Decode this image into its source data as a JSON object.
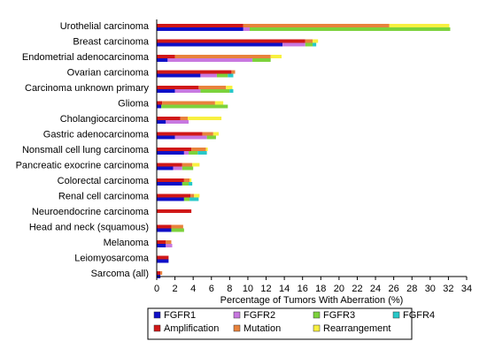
{
  "chart_data": {
    "type": "bar",
    "orientation": "horizontal",
    "stacked": true,
    "xlabel": "Percentage of Tumors With Aberration (%)",
    "xlim": [
      0,
      34
    ],
    "xticks": [
      0,
      2,
      4,
      6,
      8,
      10,
      12,
      14,
      16,
      18,
      20,
      22,
      24,
      26,
      28,
      30,
      32,
      34
    ],
    "grid": false,
    "legend_position": "bottom",
    "categories": [
      "Urothelial carcinoma",
      "Breast carcinoma",
      "Endometrial adenocarcinoma",
      "Ovarian carcinoma",
      "Carcinoma unknown primary",
      "Glioma",
      "Cholangiocarcinoma",
      "Gastric adenocarcinoma",
      "Nonsmall cell lung carcinoma",
      "Pancreatic exocrine carcinoma",
      "Colorectal carcinoma",
      "Renal cell carcinoma",
      "Neuroendocrine carcinoma",
      "Head and neck (squamous)",
      "Melanoma",
      "Leiomyosarcoma",
      "Sarcoma (all)"
    ],
    "gene_series": [
      {
        "name": "FGFR1",
        "color": "#1010c8",
        "values": [
          9.5,
          13.8,
          1.2,
          4.8,
          2.0,
          0.5,
          1.0,
          2.0,
          3.0,
          1.8,
          2.8,
          3.0,
          0.0,
          1.6,
          1.0,
          1.3,
          0.4
        ]
      },
      {
        "name": "FGFR2",
        "color": "#c878e0",
        "values": [
          0.7,
          2.5,
          9.3,
          1.8,
          2.8,
          0.0,
          2.5,
          3.5,
          0.5,
          1.0,
          0.0,
          0.0,
          0.0,
          0.0,
          0.7,
          0.0,
          0.0
        ]
      },
      {
        "name": "FGFR3",
        "color": "#7cd23c",
        "values": [
          22.0,
          0.8,
          2.0,
          1.2,
          3.2,
          7.3,
          0.0,
          1.0,
          1.0,
          1.2,
          0.7,
          0.6,
          0.0,
          1.4,
          0.0,
          0.0,
          0.0
        ]
      },
      {
        "name": "FGFR4",
        "color": "#28c8c8",
        "values": [
          0.0,
          0.4,
          0.0,
          0.6,
          0.4,
          0.0,
          0.0,
          0.0,
          1.0,
          0.0,
          0.4,
          1.0,
          0.0,
          0.0,
          0.0,
          0.0,
          0.0
        ]
      }
    ],
    "aberration_series": [
      {
        "name": "Amplification",
        "color": "#d01818",
        "values": [
          9.5,
          16.3,
          2.0,
          8.2,
          4.6,
          0.6,
          2.6,
          5.0,
          3.8,
          2.8,
          3.0,
          3.7,
          3.8,
          1.6,
          1.0,
          1.3,
          0.4
        ]
      },
      {
        "name": "Mutation",
        "color": "#e8823c",
        "values": [
          16.0,
          0.8,
          10.5,
          0.4,
          3.0,
          5.8,
          0.8,
          1.2,
          1.6,
          1.1,
          0.6,
          0.4,
          0.0,
          1.3,
          0.6,
          0.0,
          0.2
        ]
      },
      {
        "name": "Rearrangement",
        "color": "#f8f040",
        "values": [
          6.6,
          0.6,
          1.2,
          0.0,
          0.7,
          0.9,
          3.7,
          0.6,
          0.2,
          0.8,
          0.2,
          0.6,
          0.0,
          0.0,
          0.0,
          0.0,
          0.0
        ]
      }
    ],
    "legend": [
      "FGFR1",
      "FGFR2",
      "FGFR3",
      "FGFR4",
      "Amplification",
      "Mutation",
      "Rearrangement"
    ]
  }
}
